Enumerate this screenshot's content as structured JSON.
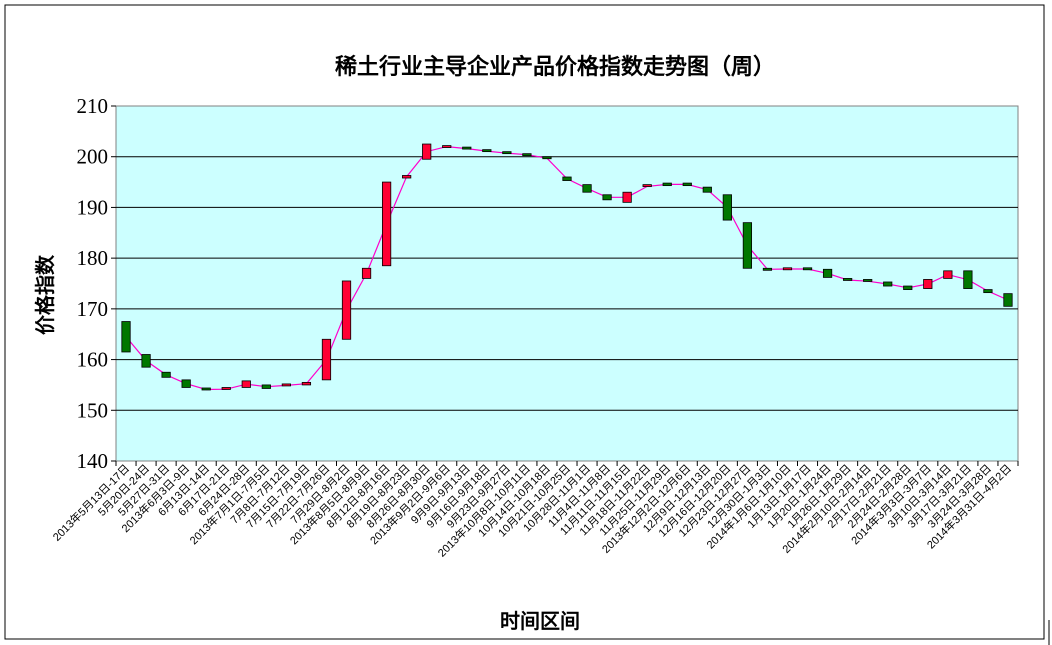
{
  "chart_data": {
    "type": "candlestick",
    "title": "稀土行业主导企业产品价格指数走势图（周）",
    "xlabel": "时间区间",
    "ylabel": "价格指数",
    "ylim": [
      140,
      210
    ],
    "yticks": [
      140,
      150,
      160,
      170,
      180,
      190,
      200,
      210
    ],
    "grid": true,
    "legend": "none",
    "colors": {
      "plot_bg": "#ccffff",
      "up": "#ff0033",
      "down": "#007700",
      "line": "#ff00cc",
      "grid": "#000000"
    },
    "categories": [
      "2013年5月13日-17日",
      "5月20日-24日",
      "5月27日-31日",
      "2013年6月3日-9日",
      "6月13日-14日",
      "6月17日-21日",
      "6月24日-28日",
      "2013年7月1日-7月5日",
      "7月8日-7月12日",
      "7月15日-7月19日",
      "7月22日-7月26日",
      "7月29日-8月2日",
      "2013年8月5日-8月9日",
      "8月12日-8月16日",
      "8月19日-8月23日",
      "8月26日-8月30日",
      "2013年9月2日-9月6日",
      "9月9日-9月13日",
      "9月16日-9月18日",
      "9月23日-9月27日",
      "2013年10月8日-10月11日",
      "10月14日-10月18日",
      "10月21日-10月25日",
      "10月28日-11月1日",
      "11月4日-11月8日",
      "11月11日-11月15日",
      "11月18日-11月22日",
      "11月25日-11月29日",
      "2013年12月2日-12月6日",
      "12月9日-12月13日",
      "12月16日-12月20日",
      "12月23日-12月27日",
      "12月30日-1月3日",
      "2014年1月6日-1月10日",
      "1月13日-1月17日",
      "1月20日-1月24日",
      "1月26日-1月29日",
      "2014年2月10日-2月14日",
      "2月17日-2月21日",
      "2月24日-2月28日",
      "2014年3月3日-3月7日",
      "3月10日-3月14日",
      "3月17日-3月21日",
      "3月24日-3月28日",
      "2014年3月31日-4月2日"
    ],
    "candles": [
      {
        "open": 167.5,
        "close": 161.5
      },
      {
        "open": 161.0,
        "close": 158.5
      },
      {
        "open": 157.5,
        "close": 156.5
      },
      {
        "open": 156.0,
        "close": 154.5
      },
      {
        "open": 154.2,
        "close": 154.0
      },
      {
        "open": 154.0,
        "close": 154.3
      },
      {
        "open": 154.5,
        "close": 155.8
      },
      {
        "open": 155.0,
        "close": 154.3
      },
      {
        "open": 154.8,
        "close": 155.0
      },
      {
        "open": 155.0,
        "close": 155.5
      },
      {
        "open": 156.0,
        "close": 164.0
      },
      {
        "open": 164.0,
        "close": 175.5
      },
      {
        "open": 176.0,
        "close": 178.0
      },
      {
        "open": 178.5,
        "close": 195.0
      },
      {
        "open": 195.8,
        "close": 196.3
      },
      {
        "open": 199.5,
        "close": 202.5
      },
      {
        "open": 202.0,
        "close": 202.0
      },
      {
        "open": 201.7,
        "close": 201.5
      },
      {
        "open": 201.2,
        "close": 201.0
      },
      {
        "open": 200.8,
        "close": 200.6
      },
      {
        "open": 200.6,
        "close": 200.2
      },
      {
        "open": 199.8,
        "close": 199.6
      },
      {
        "open": 196.0,
        "close": 195.3
      },
      {
        "open": 194.5,
        "close": 193.0
      },
      {
        "open": 192.5,
        "close": 191.5
      },
      {
        "open": 191.0,
        "close": 193.0
      },
      {
        "open": 194.0,
        "close": 194.3
      },
      {
        "open": 194.8,
        "close": 194.3
      },
      {
        "open": 194.8,
        "close": 194.3
      },
      {
        "open": 194.0,
        "close": 193.0
      },
      {
        "open": 192.5,
        "close": 187.5
      },
      {
        "open": 187.0,
        "close": 178.0
      },
      {
        "open": 178.0,
        "close": 177.6
      },
      {
        "open": 177.8,
        "close": 177.9
      },
      {
        "open": 177.9,
        "close": 177.8
      },
      {
        "open": 177.8,
        "close": 176.2
      },
      {
        "open": 175.8,
        "close": 175.6
      },
      {
        "open": 175.6,
        "close": 175.3
      },
      {
        "open": 175.3,
        "close": 174.5
      },
      {
        "open": 174.5,
        "close": 173.8
      },
      {
        "open": 174.0,
        "close": 175.8
      },
      {
        "open": 176.0,
        "close": 177.5
      },
      {
        "open": 177.5,
        "close": 174.0
      },
      {
        "open": 173.8,
        "close": 173.2
      },
      {
        "open": 173.0,
        "close": 170.5
      }
    ]
  }
}
